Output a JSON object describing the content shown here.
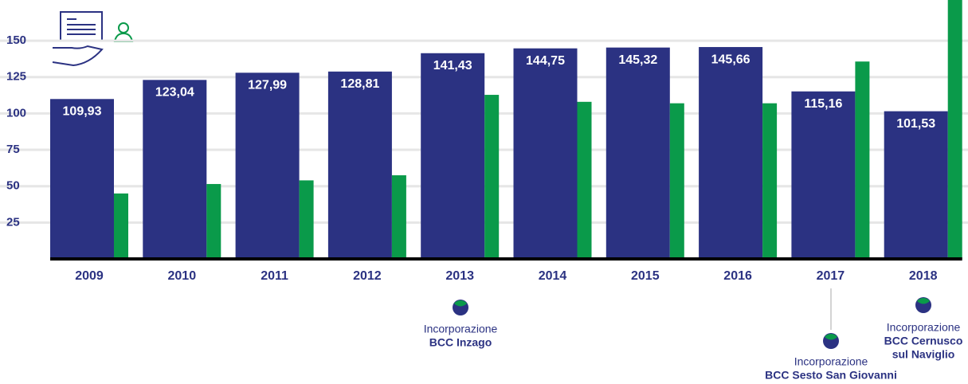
{
  "chart_data": {
    "type": "bar",
    "categories": [
      "2009",
      "2010",
      "2011",
      "2012",
      "2013",
      "2014",
      "2015",
      "2016",
      "2017",
      "2018"
    ],
    "series": [
      {
        "color": "#2b3282",
        "values": [
          109.93,
          123.04,
          127.99,
          128.81,
          141.43,
          144.75,
          145.32,
          145.66,
          115.16,
          101.53
        ],
        "value_labels": [
          "109,93",
          "123,04",
          "127,99",
          "128,81",
          "141,43",
          "144,75",
          "145,32",
          "145,66",
          "115,16",
          "101,53"
        ]
      },
      {
        "color": "#0a9a4a",
        "values": [
          45,
          51.5,
          54,
          57.5,
          112.8,
          108,
          107,
          107,
          135.7,
          185
        ]
      }
    ],
    "ylim": [
      0,
      178
    ],
    "yticks": [
      25,
      50,
      75,
      100,
      125,
      150
    ],
    "grid": true,
    "annotations": [
      {
        "lines": [
          "Incorporazione",
          "BCC Inzago"
        ]
      },
      {
        "lines": [
          "Incorporazione",
          "BCC Sesto San Giovanni"
        ]
      },
      {
        "lines": [
          "Incorporazione",
          "BCC Cernusco",
          "sul Naviglio"
        ]
      }
    ]
  }
}
